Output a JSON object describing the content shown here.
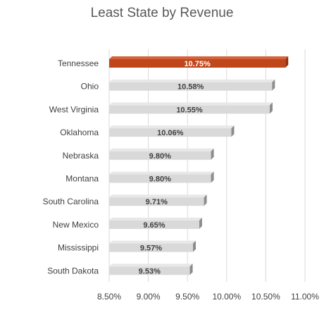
{
  "chart_data": {
    "type": "bar",
    "orientation": "horizontal",
    "title": "Least State by Revenue",
    "xlabel": "",
    "ylabel": "",
    "categories": [
      "Tennessee",
      "Ohio",
      "West Virginia",
      "Oklahoma",
      "Nebraska",
      "Montana",
      "South Carolina",
      "New Mexico",
      "Mississippi",
      "South Dakota"
    ],
    "values": [
      10.75,
      10.58,
      10.55,
      10.06,
      9.8,
      9.8,
      9.71,
      9.65,
      9.57,
      9.53
    ],
    "data_labels": [
      "10.75%",
      "10.58%",
      "10.55%",
      "10.06%",
      "9.80%",
      "9.80%",
      "9.71%",
      "9.65%",
      "9.57%",
      "9.53%"
    ],
    "xlim": [
      8.5,
      11.0
    ],
    "x_ticks": [
      8.5,
      9.0,
      9.5,
      10.0,
      10.5,
      11.0
    ],
    "x_tick_labels": [
      "8.50%",
      "9.00%",
      "9.50%",
      "10.00%",
      "10.50%",
      "11.00%"
    ],
    "grid": true,
    "legend": "none",
    "highlight_index": 0,
    "colors": {
      "highlight": "#C0461B",
      "highlight_side": "#8E2F10",
      "highlight_label": "#ffffff",
      "bar": "#D9D9D9",
      "bar_side": "#8C8C8C",
      "bar_label": "#404040",
      "grid": "#D9D9D9"
    }
  }
}
